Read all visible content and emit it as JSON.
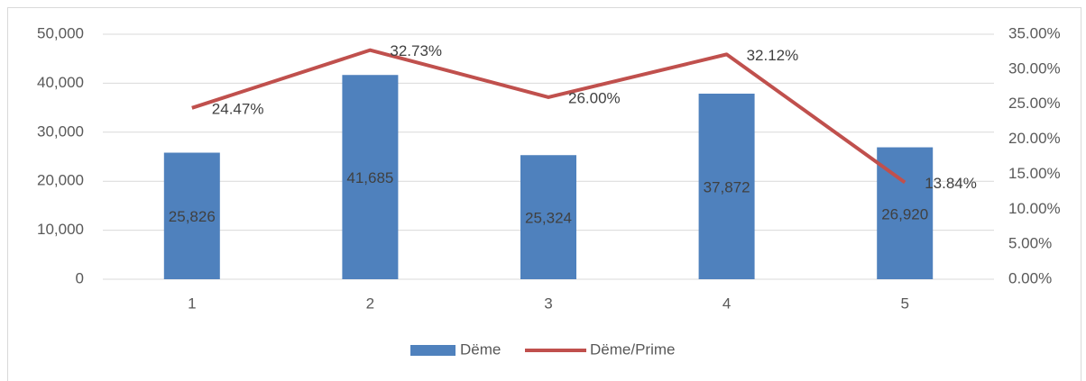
{
  "chart_data": {
    "type": "bar",
    "categories": [
      "1",
      "2",
      "3",
      "4",
      "5"
    ],
    "series": [
      {
        "name": "Dëme",
        "type": "bar",
        "color": "#4f81bd",
        "values": [
          25826,
          41685,
          25324,
          37872,
          26920
        ],
        "value_labels": [
          "25,826",
          "41,685",
          "25,324",
          "37,872",
          "26,920"
        ]
      },
      {
        "name": "Dëme/Prime",
        "type": "line",
        "axis": "y2",
        "color": "#c0504d",
        "values": [
          24.47,
          32.73,
          26.0,
          32.12,
          13.84
        ],
        "value_labels": [
          "24.47%",
          "32.73%",
          "26.00%",
          "32.12%",
          "13.84%"
        ]
      }
    ],
    "ylim": [
      0,
      50000
    ],
    "yticks": [
      0,
      {
        "value": 10000,
        "label": "10,000"
      },
      {
        "value": 20000,
        "label": "20,000"
      },
      {
        "value": 30000,
        "label": "30,000"
      },
      {
        "value": 40000,
        "label": "40,000"
      },
      {
        "value": 50000,
        "label": "50,000"
      }
    ],
    "y2lim": [
      0,
      35
    ],
    "y2ticks": [
      {
        "value": 0,
        "label": "0.00%"
      },
      {
        "value": 5,
        "label": "5.00%"
      },
      {
        "value": 10,
        "label": "10.00%"
      },
      {
        "value": 15,
        "label": "15.00%"
      },
      {
        "value": 20,
        "label": "20.00%"
      },
      {
        "value": 25,
        "label": "25.00%"
      },
      {
        "value": 30,
        "label": "30.00%"
      },
      {
        "value": 35,
        "label": "35.00%"
      }
    ],
    "grid": true,
    "legend": "bottom"
  }
}
